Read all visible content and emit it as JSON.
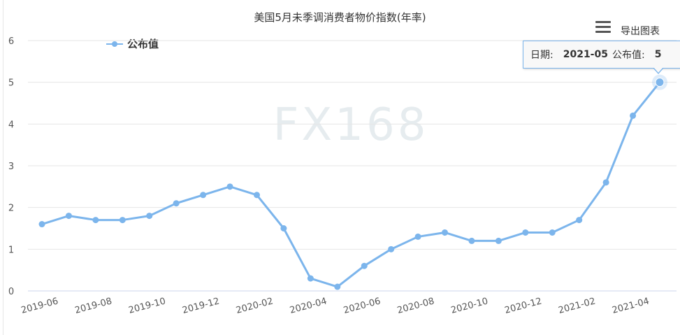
{
  "chart_data": {
    "type": "line",
    "title": "美国5月未季调消费者物价指数(年率)",
    "watermark": "FX168",
    "ylim": [
      0,
      6
    ],
    "yticks": [
      "0",
      "1",
      "2",
      "3",
      "4",
      "5",
      "6"
    ],
    "x": [
      "2019-06",
      "2019-07",
      "2019-08",
      "2019-09",
      "2019-10",
      "2019-11",
      "2019-12",
      "2020-01",
      "2020-02",
      "2020-03",
      "2020-04",
      "2020-05",
      "2020-06",
      "2020-07",
      "2020-08",
      "2020-09",
      "2020-10",
      "2020-11",
      "2020-12",
      "2021-01",
      "2021-02",
      "2021-03",
      "2021-04",
      "2021-05"
    ],
    "xtick_labels": [
      "2019-06",
      "2019-08",
      "2019-10",
      "2019-12",
      "2020-02",
      "2020-04",
      "2020-06",
      "2020-08",
      "2020-10",
      "2020-12",
      "2021-02",
      "2021-04"
    ],
    "series": [
      {
        "name": "公布值",
        "color": "#7cb5ec",
        "values": [
          1.6,
          1.8,
          1.7,
          1.7,
          1.8,
          2.1,
          2.3,
          2.5,
          2.3,
          1.5,
          0.3,
          0.1,
          0.6,
          1.0,
          1.3,
          1.4,
          1.2,
          1.2,
          1.4,
          1.4,
          1.7,
          2.6,
          4.2,
          5.0
        ]
      }
    ],
    "legend": {
      "position": "top-left",
      "label": "公布值"
    },
    "grid": true,
    "tooltip": {
      "date_label": "日期:",
      "date_value": "2021-05",
      "value_label": "公布值:",
      "value": "5"
    }
  },
  "toolbar": {
    "menu_icon": "hamburger-menu-icon",
    "export_label": "导出图表"
  }
}
